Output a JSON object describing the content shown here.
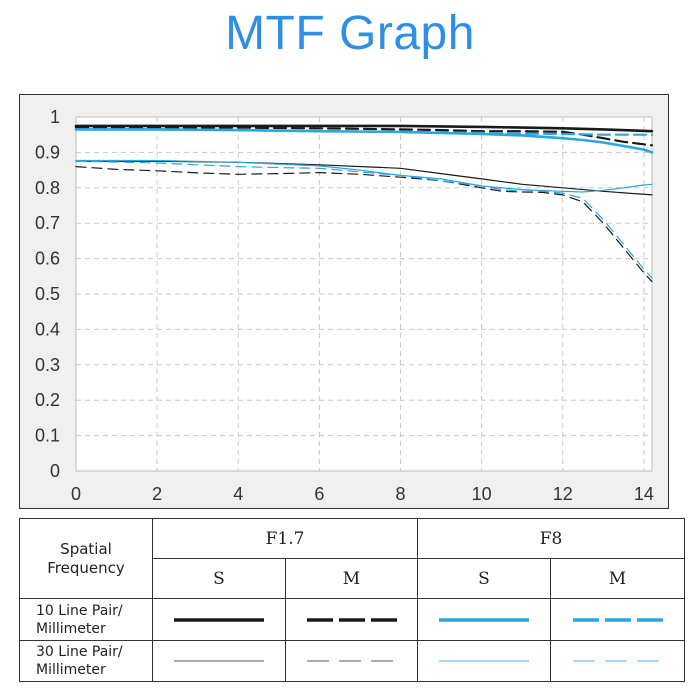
{
  "header": {
    "title": "MTF Graph"
  },
  "colors": {
    "title": "#2f8fe6",
    "black_series": "#1a1a1a",
    "blue_series": "#2aa6df",
    "grid": "#c8c8c8",
    "plot_bg": "#f0f0f0"
  },
  "chart_data": {
    "type": "line",
    "xlim": [
      0,
      14.2
    ],
    "ylim": [
      0,
      1
    ],
    "xticks": [
      "0",
      "2",
      "4",
      "6",
      "8",
      "10",
      "12",
      "14"
    ],
    "yticks": [
      "0",
      "0.1",
      "0.2",
      "0.3",
      "0.4",
      "0.5",
      "0.6",
      "0.7",
      "0.8",
      "0.9",
      "1"
    ],
    "grid": true,
    "series": [
      {
        "aperture": "F1.7",
        "direction": "S",
        "frequency": "10 Line Pair/ Millimeter",
        "style": "thick-solid",
        "color": "#1a1a1a",
        "x": [
          0,
          2,
          4,
          6,
          8,
          10,
          11,
          12,
          13,
          14.2
        ],
        "y": [
          0.975,
          0.975,
          0.975,
          0.975,
          0.975,
          0.972,
          0.97,
          0.968,
          0.965,
          0.96
        ]
      },
      {
        "aperture": "F1.7",
        "direction": "M",
        "frequency": "10 Line Pair/ Millimeter",
        "style": "thick-dashed",
        "color": "#1a1a1a",
        "x": [
          0,
          2,
          4,
          6,
          8,
          9,
          10,
          11,
          12,
          12.5,
          13,
          13.5,
          14.2
        ],
        "y": [
          0.97,
          0.97,
          0.97,
          0.968,
          0.965,
          0.963,
          0.96,
          0.96,
          0.958,
          0.95,
          0.94,
          0.93,
          0.92
        ]
      },
      {
        "aperture": "F1.7",
        "direction": "S",
        "frequency": "30 Line Pair/ Millimeter",
        "style": "thin-solid",
        "color": "#1a1a1a",
        "x": [
          0,
          2,
          4,
          6,
          8,
          9,
          10,
          11,
          12,
          13,
          14.2
        ],
        "y": [
          0.875,
          0.875,
          0.872,
          0.865,
          0.855,
          0.84,
          0.825,
          0.81,
          0.8,
          0.79,
          0.78
        ]
      },
      {
        "aperture": "F1.7",
        "direction": "M",
        "frequency": "30 Line Pair/ Millimeter",
        "style": "thin-dashed",
        "color": "#1a1a1a",
        "x": [
          0,
          1,
          2,
          3,
          4,
          5,
          6,
          7,
          8,
          9,
          10,
          10.5,
          11,
          11.5,
          12,
          12.5,
          13,
          13.5,
          14,
          14.2
        ],
        "y": [
          0.86,
          0.852,
          0.848,
          0.842,
          0.838,
          0.84,
          0.843,
          0.838,
          0.83,
          0.82,
          0.8,
          0.79,
          0.788,
          0.787,
          0.78,
          0.76,
          0.7,
          0.63,
          0.56,
          0.535
        ]
      },
      {
        "aperture": "F8",
        "direction": "S",
        "frequency": "10 Line Pair/ Millimeter",
        "style": "thick-solid",
        "color": "#2aa6df",
        "x": [
          0,
          2,
          4,
          6,
          8,
          10,
          11,
          12,
          12.5,
          13,
          13.5,
          14,
          14.2
        ],
        "y": [
          0.965,
          0.965,
          0.963,
          0.96,
          0.958,
          0.952,
          0.948,
          0.94,
          0.935,
          0.928,
          0.918,
          0.908,
          0.9
        ]
      },
      {
        "aperture": "F8",
        "direction": "M",
        "frequency": "10 Line Pair/ Millimeter",
        "style": "thick-dashed",
        "color": "#2aa6df",
        "x": [
          0,
          2,
          4,
          6,
          8,
          10,
          11,
          12,
          12.5,
          13,
          13.5,
          14,
          14.2
        ],
        "y": [
          0.965,
          0.965,
          0.963,
          0.96,
          0.958,
          0.955,
          0.953,
          0.952,
          0.951,
          0.95,
          0.95,
          0.95,
          0.95
        ]
      },
      {
        "aperture": "F8",
        "direction": "S",
        "frequency": "30 Line Pair/ Millimeter",
        "style": "thin-solid",
        "color": "#2aa6df",
        "x": [
          0,
          2,
          4,
          6,
          7,
          8,
          9,
          10,
          11,
          12,
          12.5,
          13,
          13.5,
          14,
          14.2
        ],
        "y": [
          0.877,
          0.877,
          0.872,
          0.862,
          0.85,
          0.835,
          0.825,
          0.805,
          0.795,
          0.79,
          0.788,
          0.793,
          0.8,
          0.808,
          0.81
        ]
      },
      {
        "aperture": "F8",
        "direction": "M",
        "frequency": "30 Line Pair/ Millimeter",
        "style": "thin-dashed",
        "color": "#2aa6df",
        "x": [
          0,
          1,
          2,
          3,
          4,
          5,
          6,
          7,
          8,
          9,
          10,
          10.5,
          11,
          11.5,
          12,
          12.5,
          13,
          13.5,
          14,
          14.2
        ],
        "y": [
          0.875,
          0.873,
          0.87,
          0.865,
          0.86,
          0.857,
          0.855,
          0.845,
          0.835,
          0.82,
          0.805,
          0.795,
          0.79,
          0.79,
          0.785,
          0.77,
          0.71,
          0.64,
          0.57,
          0.545
        ]
      }
    ]
  },
  "legend": {
    "header": {
      "corner": "Spatial Frequency",
      "corner_line1": "Spatial",
      "corner_line2": "Frequency",
      "aperture_1": "F1.7",
      "aperture_2": "F8"
    },
    "subheader": {
      "s1": "S",
      "m1": "M",
      "s2": "S",
      "m2": "M"
    },
    "rows": [
      {
        "label_line1": "10 Line Pair/",
        "label_line2": "Millimeter"
      },
      {
        "label_line1": "30 Line Pair/",
        "label_line2": "Millimeter"
      }
    ]
  }
}
